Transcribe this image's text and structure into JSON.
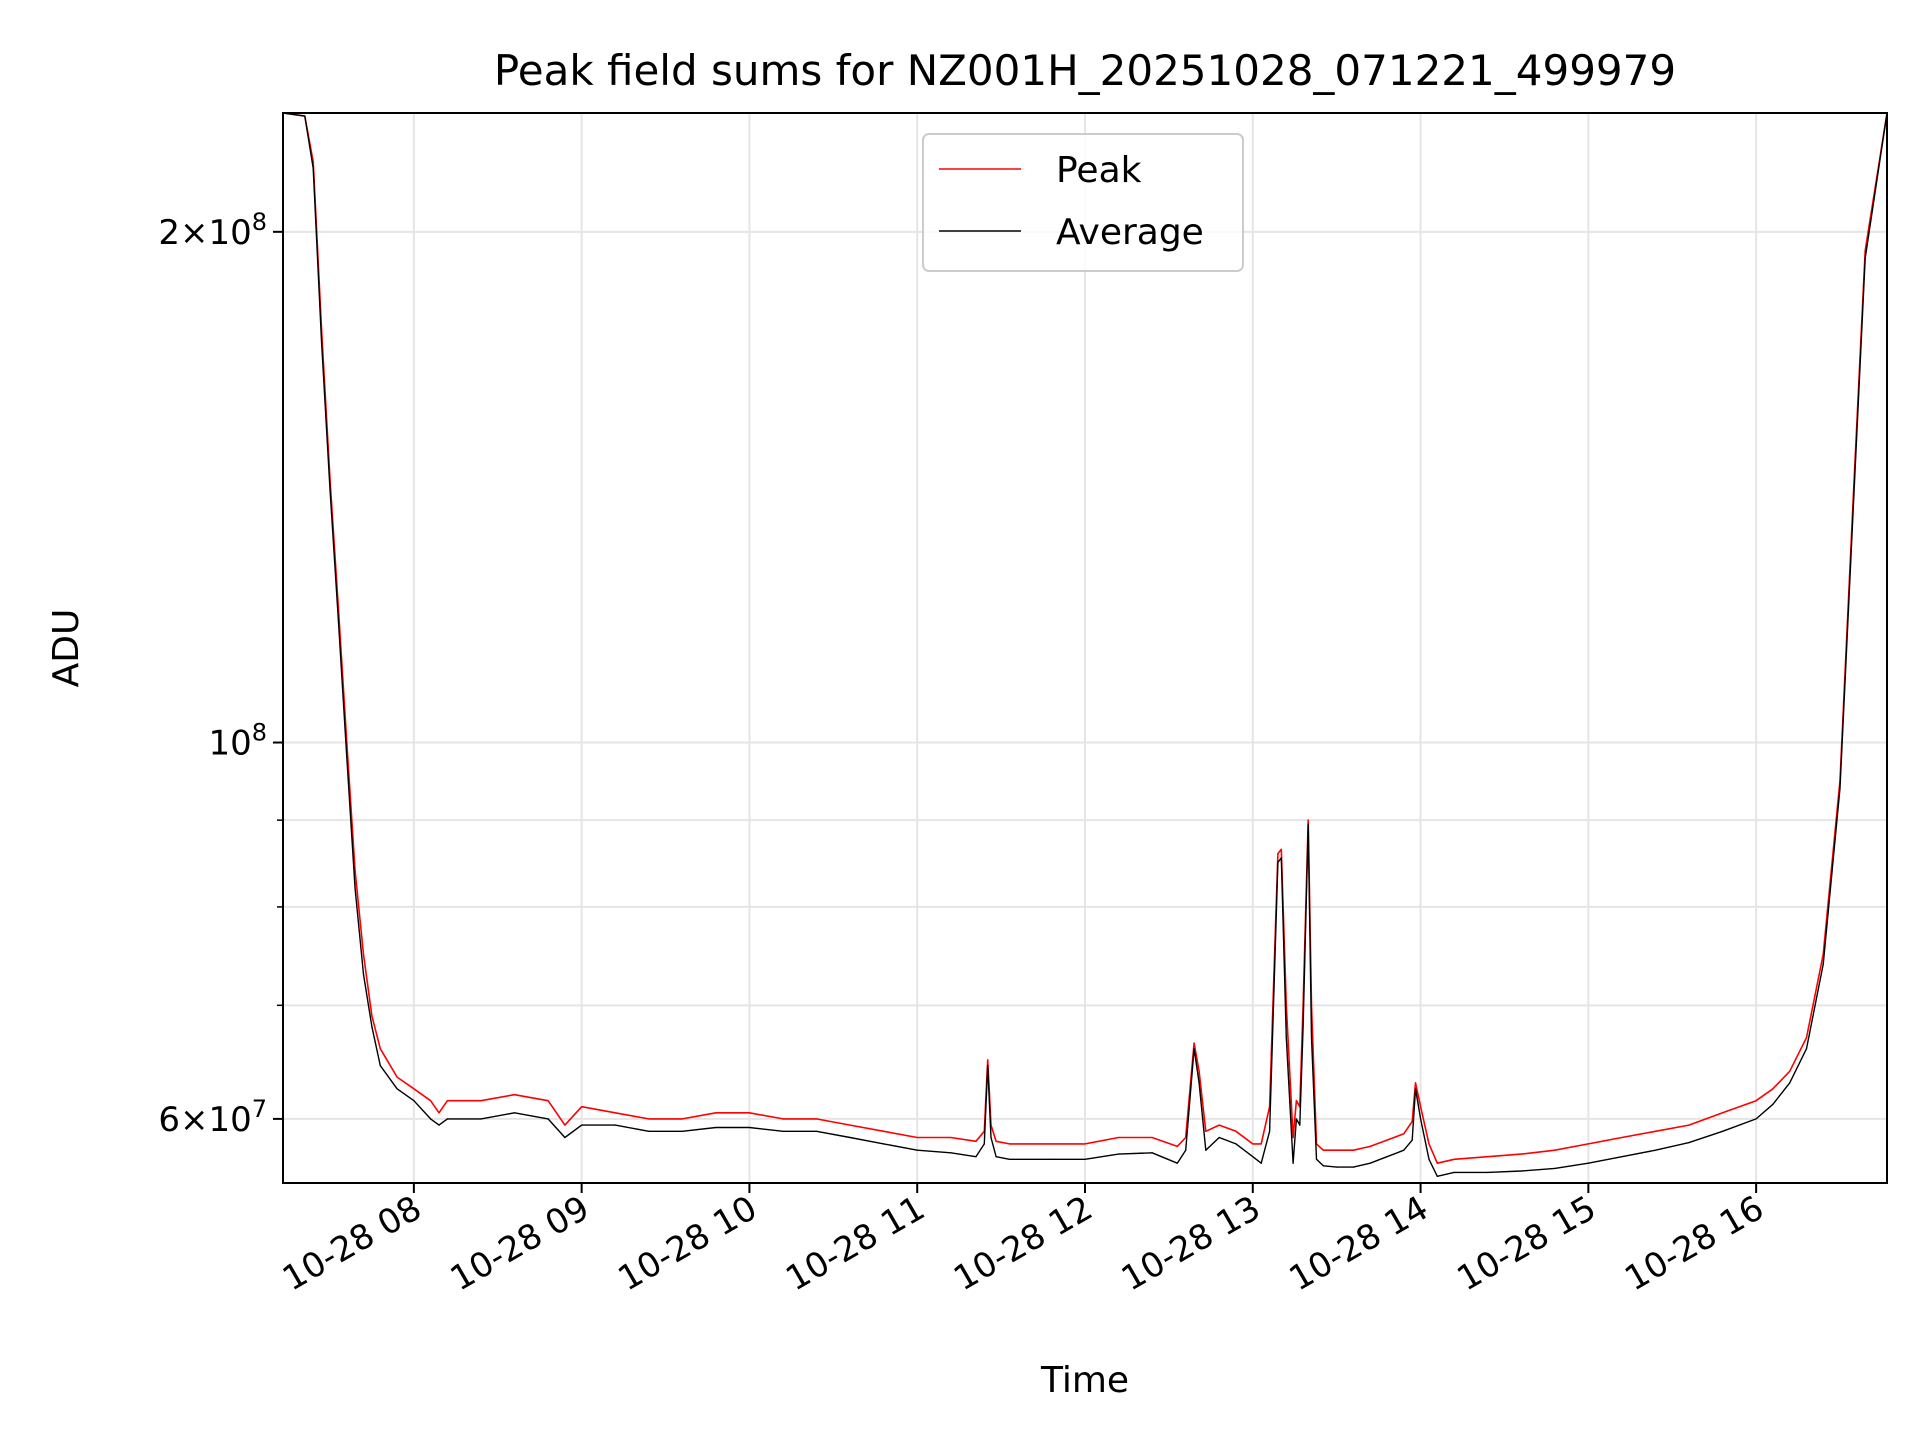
{
  "chart_data": {
    "type": "line",
    "title": "Peak field sums for NZ001H_20251028_071221_499979",
    "xlabel": "Time",
    "ylabel": "ADU",
    "yscale": "log",
    "xlim_hours": [
      7.22,
      16.78
    ],
    "ylim": [
      55000000,
      235000000
    ],
    "grid": true,
    "legend_position": "upper center",
    "x_ticks": [
      {
        "value": 8,
        "label": "10-28 08"
      },
      {
        "value": 9,
        "label": "10-28 09"
      },
      {
        "value": 10,
        "label": "10-28 10"
      },
      {
        "value": 11,
        "label": "10-28 11"
      },
      {
        "value": 12,
        "label": "10-28 12"
      },
      {
        "value": 13,
        "label": "10-28 13"
      },
      {
        "value": 14,
        "label": "10-28 14"
      },
      {
        "value": 15,
        "label": "10-28 15"
      },
      {
        "value": 16,
        "label": "10-28 16"
      }
    ],
    "y_ticks": [
      {
        "value": 60000000,
        "mantissa": "6",
        "exp": "7"
      },
      {
        "value": 100000000,
        "mantissa": "",
        "exp": "8"
      },
      {
        "value": 200000000,
        "mantissa": "2",
        "exp": "8"
      }
    ],
    "y_minor_ticks": [
      70000000,
      80000000,
      90000000
    ],
    "series": [
      {
        "name": "Peak",
        "color": "#ff0000",
        "x": [
          7.22,
          7.35,
          7.4,
          7.45,
          7.5,
          7.55,
          7.6,
          7.65,
          7.7,
          7.75,
          7.8,
          7.9,
          8.0,
          8.1,
          8.15,
          8.2,
          8.4,
          8.6,
          8.8,
          8.9,
          9.0,
          9.2,
          9.4,
          9.6,
          9.8,
          10.0,
          10.2,
          10.4,
          10.6,
          10.8,
          11.0,
          11.2,
          11.35,
          11.4,
          11.42,
          11.44,
          11.47,
          11.55,
          11.8,
          12.0,
          12.2,
          12.4,
          12.55,
          12.6,
          12.65,
          12.68,
          12.72,
          12.8,
          12.9,
          13.0,
          13.05,
          13.1,
          13.15,
          13.17,
          13.2,
          13.24,
          13.26,
          13.28,
          13.3,
          13.33,
          13.35,
          13.38,
          13.42,
          13.5,
          13.6,
          13.7,
          13.8,
          13.9,
          13.95,
          13.97,
          14.0,
          14.05,
          14.1,
          14.2,
          14.4,
          14.6,
          14.8,
          15.0,
          15.2,
          15.4,
          15.6,
          15.8,
          16.0,
          16.1,
          16.2,
          16.3,
          16.4,
          16.5,
          16.58,
          16.65,
          16.78
        ],
        "y": [
          235000000,
          234000000,
          220000000,
          175000000,
          143000000,
          120000000,
          100000000,
          84000000,
          75000000,
          69000000,
          66000000,
          63500000,
          62500000,
          61500000,
          60500000,
          61500000,
          61500000,
          62000000,
          61500000,
          59500000,
          61000000,
          60500000,
          60000000,
          60000000,
          60500000,
          60500000,
          60000000,
          60000000,
          59500000,
          59000000,
          58500000,
          58500000,
          58200000,
          59000000,
          65000000,
          59500000,
          58200000,
          58000000,
          58000000,
          58000000,
          58500000,
          58500000,
          57800000,
          58500000,
          66500000,
          64000000,
          59000000,
          59500000,
          59000000,
          58000000,
          58000000,
          61000000,
          86000000,
          86500000,
          70000000,
          58500000,
          61500000,
          61000000,
          70000000,
          90000000,
          70000000,
          58000000,
          57500000,
          57500000,
          57500000,
          57800000,
          58300000,
          58800000,
          59800000,
          63000000,
          61000000,
          58000000,
          56500000,
          56800000,
          57000000,
          57200000,
          57500000,
          58000000,
          58500000,
          59000000,
          59500000,
          60500000,
          61500000,
          62500000,
          64000000,
          67000000,
          75000000,
          95000000,
          140000000,
          195000000,
          235000000
        ]
      },
      {
        "name": "Average",
        "color": "#000000",
        "x": [
          7.22,
          7.35,
          7.4,
          7.45,
          7.5,
          7.55,
          7.6,
          7.65,
          7.7,
          7.75,
          7.8,
          7.9,
          8.0,
          8.1,
          8.15,
          8.2,
          8.4,
          8.6,
          8.8,
          8.9,
          9.0,
          9.2,
          9.4,
          9.6,
          9.8,
          10.0,
          10.2,
          10.4,
          10.6,
          10.8,
          11.0,
          11.2,
          11.35,
          11.4,
          11.42,
          11.44,
          11.47,
          11.55,
          11.8,
          12.0,
          12.2,
          12.4,
          12.55,
          12.6,
          12.65,
          12.68,
          12.72,
          12.8,
          12.9,
          13.0,
          13.05,
          13.1,
          13.15,
          13.17,
          13.2,
          13.24,
          13.26,
          13.28,
          13.3,
          13.33,
          13.35,
          13.38,
          13.42,
          13.5,
          13.6,
          13.7,
          13.8,
          13.9,
          13.95,
          13.97,
          14.0,
          14.05,
          14.1,
          14.2,
          14.4,
          14.6,
          14.8,
          15.0,
          15.2,
          15.4,
          15.6,
          15.8,
          16.0,
          16.1,
          16.2,
          16.3,
          16.4,
          16.5,
          16.58,
          16.65,
          16.78
        ],
        "y": [
          235000000,
          234000000,
          218000000,
          172000000,
          141000000,
          118000000,
          98000000,
          82000000,
          73000000,
          68000000,
          64500000,
          62500000,
          61500000,
          60000000,
          59500000,
          60000000,
          60000000,
          60500000,
          60000000,
          58500000,
          59500000,
          59500000,
          59000000,
          59000000,
          59300000,
          59300000,
          59000000,
          59000000,
          58500000,
          58000000,
          57500000,
          57300000,
          57000000,
          58000000,
          64500000,
          58500000,
          57000000,
          56800000,
          56800000,
          56800000,
          57200000,
          57300000,
          56500000,
          57500000,
          66000000,
          63000000,
          57500000,
          58500000,
          58000000,
          57000000,
          56500000,
          59000000,
          85000000,
          85500000,
          67000000,
          56500000,
          60000000,
          59500000,
          68000000,
          89500000,
          67000000,
          56800000,
          56300000,
          56200000,
          56200000,
          56500000,
          57000000,
          57500000,
          58300000,
          62500000,
          60000000,
          56800000,
          55500000,
          55800000,
          55800000,
          55900000,
          56100000,
          56500000,
          57000000,
          57500000,
          58100000,
          59000000,
          60000000,
          61200000,
          63000000,
          66000000,
          74000000,
          94000000,
          138000000,
          193000000,
          235000000
        ]
      }
    ]
  }
}
